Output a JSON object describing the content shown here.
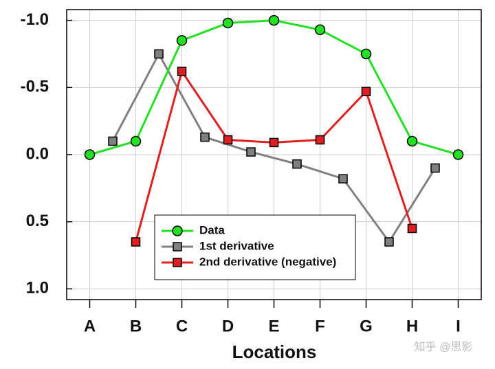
{
  "chart_data": {
    "type": "line",
    "xlabel": "Locations",
    "xlim": [
      -0.5,
      8.5
    ],
    "xticks": [
      {
        "value": 0,
        "label": "A"
      },
      {
        "value": 1,
        "label": "B"
      },
      {
        "value": 2,
        "label": "C"
      },
      {
        "value": 3,
        "label": "D"
      },
      {
        "value": 4,
        "label": "E"
      },
      {
        "value": 5,
        "label": "F"
      },
      {
        "value": 6,
        "label": "G"
      },
      {
        "value": 7,
        "label": "H"
      },
      {
        "value": 8,
        "label": "I"
      }
    ],
    "ylim": [
      1.08,
      -1.08
    ],
    "yticks": [
      {
        "value": -1,
        "label": "-1.0"
      },
      {
        "value": -0.5,
        "label": "-0.5"
      },
      {
        "value": 0,
        "label": "0.0"
      },
      {
        "value": 0.5,
        "label": "0.5"
      },
      {
        "value": 1,
        "label": "1.0"
      }
    ],
    "grid": true,
    "legend": "bottom-center",
    "series": [
      {
        "name": "1st derivative",
        "color": "#808080",
        "marker": "square",
        "x": [
          0.5,
          1.5,
          2.5,
          3.5,
          4.5,
          5.5,
          6.5,
          7.5
        ],
        "values": [
          -0.1,
          -0.75,
          -0.13,
          -0.02,
          0.07,
          0.18,
          0.65,
          0.1
        ]
      },
      {
        "name": "2nd derivative (negative)",
        "color": "#e02020",
        "marker": "square",
        "x": [
          1,
          2,
          3,
          4,
          5,
          6,
          7
        ],
        "values": [
          0.65,
          -0.62,
          -0.11,
          -0.09,
          -0.11,
          -0.47,
          0.55
        ]
      },
      {
        "name": "Data",
        "color": "#22e022",
        "marker": "circle",
        "x": [
          0,
          1,
          2,
          3,
          4,
          5,
          6,
          7,
          8
        ],
        "values": [
          0,
          -0.1,
          -0.85,
          -0.98,
          -1.0,
          -0.93,
          -0.75,
          -0.1,
          0
        ]
      }
    ],
    "watermark": "知乎 @思影"
  }
}
